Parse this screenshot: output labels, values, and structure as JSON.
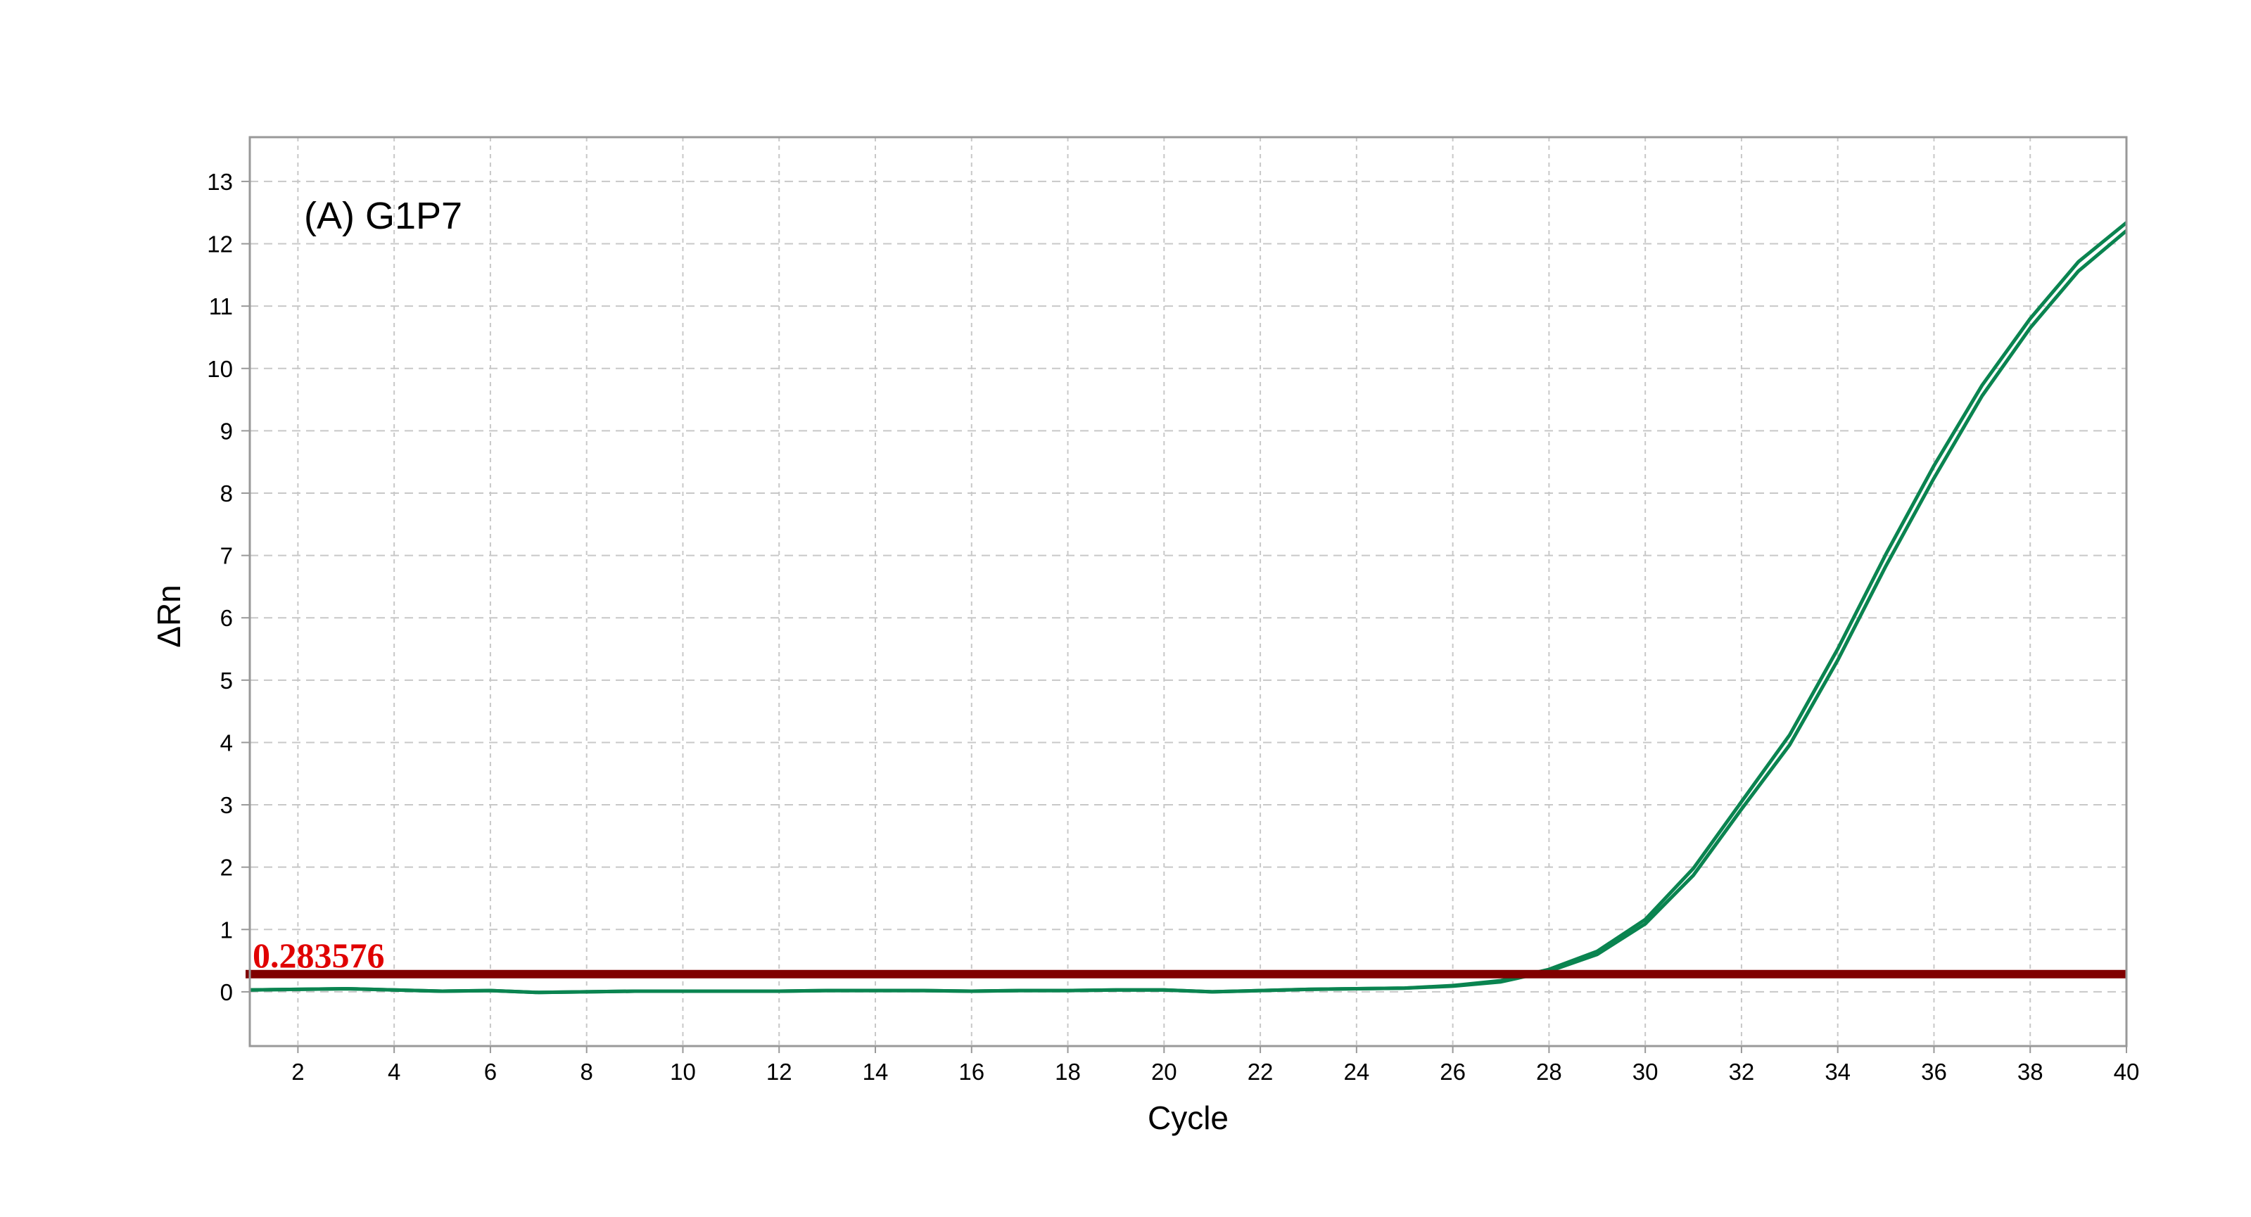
{
  "chart_data": {
    "type": "line",
    "title": "(A) G1P7",
    "xlabel": "Cycle",
    "ylabel": "ΔRn",
    "xlim": [
      1,
      40
    ],
    "ylim": [
      -0.87,
      13.71
    ],
    "grid": true,
    "x_ticks": [
      2,
      4,
      6,
      8,
      10,
      12,
      14,
      16,
      18,
      20,
      22,
      24,
      26,
      28,
      30,
      32,
      34,
      36,
      38,
      40
    ],
    "y_ticks": [
      0,
      1,
      2,
      3,
      4,
      5,
      6,
      7,
      8,
      9,
      10,
      11,
      12,
      13
    ],
    "x": [
      1,
      2,
      3,
      4,
      5,
      6,
      7,
      8,
      9,
      10,
      11,
      12,
      13,
      14,
      15,
      16,
      17,
      18,
      19,
      20,
      21,
      22,
      23,
      24,
      25,
      26,
      27,
      28,
      29,
      30,
      31,
      32,
      33,
      34,
      35,
      36,
      37,
      38,
      39,
      40
    ],
    "series": [
      {
        "color": "#0a8450",
        "values": [
          0.03,
          0.04,
          0.05,
          0.03,
          0.01,
          0.02,
          -0.01,
          0.0,
          0.01,
          0.01,
          0.01,
          0.01,
          0.02,
          0.02,
          0.02,
          0.01,
          0.02,
          0.02,
          0.03,
          0.03,
          0.0,
          0.02,
          0.04,
          0.05,
          0.06,
          0.1,
          0.18,
          0.36,
          0.65,
          1.16,
          1.98,
          3.05,
          4.12,
          5.5,
          7.02,
          8.44,
          9.73,
          10.8,
          11.71,
          12.34
        ]
      },
      {
        "color": "#0a8450",
        "values": [
          0.03,
          0.04,
          0.05,
          0.03,
          0.01,
          0.02,
          -0.01,
          0.0,
          0.01,
          0.01,
          0.01,
          0.01,
          0.02,
          0.02,
          0.02,
          0.01,
          0.02,
          0.02,
          0.03,
          0.03,
          0.0,
          0.02,
          0.04,
          0.05,
          0.06,
          0.09,
          0.16,
          0.33,
          0.6,
          1.09,
          1.87,
          2.93,
          3.96,
          5.32,
          6.83,
          8.24,
          9.56,
          10.65,
          11.56,
          12.21
        ]
      }
    ],
    "threshold": {
      "value": 0.283576,
      "label": "0.283576",
      "color": "#800000",
      "label_color": "#e00000"
    }
  }
}
